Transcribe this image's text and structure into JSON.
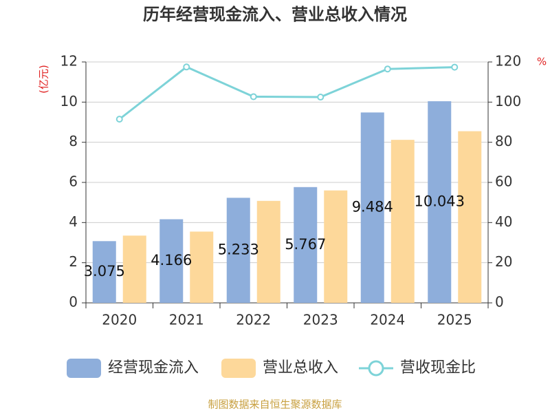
{
  "chart_data": {
    "type": "bar",
    "title": "历年经营现金流入、营业总收入情况",
    "y_label": "(亿元)",
    "y2_label": "%",
    "source": "制图数据来自恒生聚源数据库",
    "categories": [
      "2020",
      "2021",
      "2022",
      "2023",
      "2024",
      "2025"
    ],
    "series": [
      {
        "name": "经营现金流入",
        "type": "bar",
        "color": "#8eaedb",
        "values": [
          3.075,
          4.166,
          5.233,
          5.767,
          9.484,
          10.043
        ],
        "data_labels": true
      },
      {
        "name": "营业总收入",
        "type": "bar",
        "color": "#fdd89a",
        "values": [
          3.35,
          3.55,
          5.08,
          5.6,
          8.12,
          8.55
        ]
      },
      {
        "name": "营收现金比",
        "type": "line",
        "axis": "y2",
        "color": "#7dd3d8",
        "values": [
          91.5,
          117.5,
          102.7,
          102.5,
          116.5,
          117.4
        ]
      }
    ],
    "ylim": [
      0,
      12
    ],
    "yticks": [
      0,
      2,
      4,
      6,
      8,
      10,
      12
    ],
    "y2lim": [
      0,
      120
    ],
    "y2ticks": [
      0,
      20,
      40,
      60,
      80,
      100,
      120
    ],
    "grid": true,
    "legend": "bottom"
  }
}
